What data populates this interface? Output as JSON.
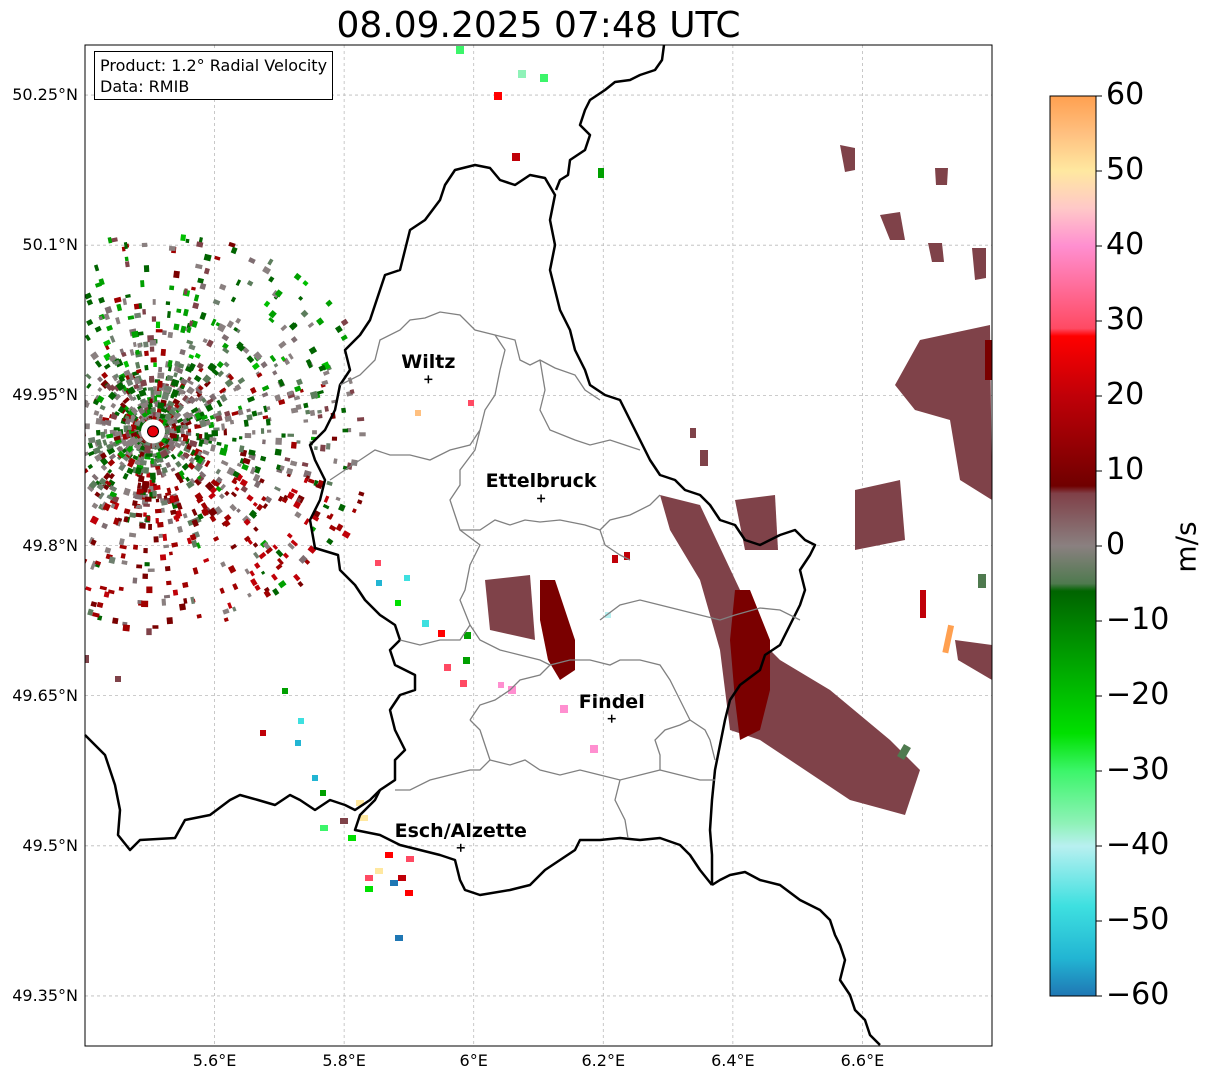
{
  "title": "08.09.2025 07:48 UTC",
  "info_box": {
    "product": "Product: 1.2° Radial Velocity",
    "data_source": "Data: RMIB"
  },
  "map": {
    "lon_range": [
      5.4,
      6.8
    ],
    "lat_range": [
      49.3,
      50.3
    ],
    "grid": true,
    "lat_ticks": [
      {
        "value": 49.35,
        "label": "49.35°N"
      },
      {
        "value": 49.5,
        "label": "49.5°N"
      },
      {
        "value": 49.65,
        "label": "49.65°N"
      },
      {
        "value": 49.8,
        "label": "49.8°N"
      },
      {
        "value": 49.95,
        "label": "49.95°N"
      },
      {
        "value": 50.1,
        "label": "50.1°N"
      },
      {
        "value": 50.25,
        "label": "50.25°N"
      }
    ],
    "lon_ticks": [
      {
        "value": 5.6,
        "label": "5.6°E"
      },
      {
        "value": 5.8,
        "label": "5.8°E"
      },
      {
        "value": 6.0,
        "label": "6°E"
      },
      {
        "value": 6.2,
        "label": "6.2°E"
      },
      {
        "value": 6.4,
        "label": "6.4°E"
      },
      {
        "value": 6.6,
        "label": "6.6°E"
      }
    ],
    "cities": [
      {
        "name": "Wiltz",
        "lon": 5.93,
        "lat": 49.966
      },
      {
        "name": "Ettelbruck",
        "lon": 6.104,
        "lat": 49.847
      },
      {
        "name": "Findel",
        "lon": 6.213,
        "lat": 49.627
      },
      {
        "name": "Esch/Alzette",
        "lon": 5.98,
        "lat": 49.498
      }
    ],
    "radar_site": {
      "lon": 5.505,
      "lat": 49.914,
      "color": "#e8000b"
    }
  },
  "colorbar": {
    "unit": "m/s",
    "range": [
      -60,
      60
    ],
    "ticks": [
      {
        "value": 60,
        "label": "60"
      },
      {
        "value": 50,
        "label": "50"
      },
      {
        "value": 40,
        "label": "40"
      },
      {
        "value": 30,
        "label": "30"
      },
      {
        "value": 20,
        "label": "20"
      },
      {
        "value": 10,
        "label": "10"
      },
      {
        "value": 0,
        "label": "0"
      },
      {
        "value": -10,
        "label": "−10"
      },
      {
        "value": -20,
        "label": "−20"
      },
      {
        "value": -30,
        "label": "−30"
      },
      {
        "value": -40,
        "label": "−40"
      },
      {
        "value": -50,
        "label": "−50"
      },
      {
        "value": -60,
        "label": "−60"
      }
    ],
    "stops": [
      {
        "v": -60,
        "c": "#1f77b4"
      },
      {
        "v": -55,
        "c": "#22b5d3"
      },
      {
        "v": -48,
        "c": "#3ee0e0"
      },
      {
        "v": -40,
        "c": "#b8f0f0"
      },
      {
        "v": -37,
        "c": "#8ff2b8"
      },
      {
        "v": -30,
        "c": "#3cf56a"
      },
      {
        "v": -25,
        "c": "#00e000"
      },
      {
        "v": -15,
        "c": "#00a000"
      },
      {
        "v": -6,
        "c": "#006400"
      },
      {
        "v": -5,
        "c": "#4f7a4f"
      },
      {
        "v": 0,
        "c": "#8a8080"
      },
      {
        "v": 7,
        "c": "#804048"
      },
      {
        "v": 8,
        "c": "#700000"
      },
      {
        "v": 20,
        "c": "#c00008"
      },
      {
        "v": 28,
        "c": "#ff0000"
      },
      {
        "v": 29,
        "c": "#ff4a63"
      },
      {
        "v": 40,
        "c": "#ff8fd0"
      },
      {
        "v": 45,
        "c": "#ffc8c8"
      },
      {
        "v": 50,
        "c": "#ffe8a0"
      },
      {
        "v": 55,
        "c": "#ffc080"
      },
      {
        "v": 60,
        "c": "#ffa050"
      }
    ]
  },
  "colors": {
    "border": "#000000",
    "district": "#808080",
    "grid": "#bbbbbb",
    "echo_inbound_far": "#7f4249",
    "echo_core": "#7a0000"
  }
}
